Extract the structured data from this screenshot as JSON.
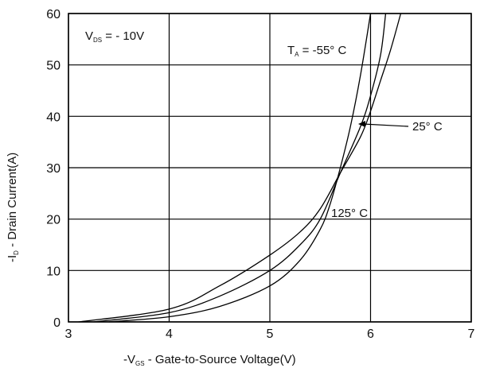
{
  "chart_data": {
    "type": "line",
    "xlabel": {
      "prefix": "-V",
      "sub": "GS",
      "rest": " - Gate-to-Source Voltage(V)"
    },
    "ylabel": {
      "prefix": "-I",
      "sub": "D",
      "rest": " - Drain Current(A)"
    },
    "xlim": [
      3,
      7
    ],
    "ylim": [
      0,
      60
    ],
    "x_ticks": [
      3,
      4,
      5,
      6,
      7
    ],
    "y_ticks": [
      0,
      10,
      20,
      30,
      40,
      50,
      60
    ],
    "grid": true,
    "annotations": {
      "vds": {
        "prefix": "V",
        "sub": "DS",
        "rest": " = - 10V"
      },
      "ta": {
        "prefix": "T",
        "sub": "A",
        "rest": "  = -55° C"
      },
      "t25": "25° C",
      "t125": "125° C"
    },
    "series": [
      {
        "name": "-55° C",
        "x": [
          3.4,
          4.0,
          4.5,
          5.0,
          5.3,
          5.5,
          5.6,
          5.7,
          5.8,
          5.9,
          6.0
        ],
        "y": [
          0,
          1.0,
          3.0,
          7.0,
          12.0,
          18.0,
          23.0,
          30.0,
          38.0,
          48.0,
          60.0
        ]
      },
      {
        "name": "25° C",
        "x": [
          3.25,
          4.0,
          4.5,
          5.0,
          5.3,
          5.5,
          5.7,
          5.9,
          6.0,
          6.1,
          6.15
        ],
        "y": [
          0,
          1.8,
          5.0,
          10.0,
          15.0,
          20.0,
          29.0,
          38.0,
          44.0,
          52.0,
          60.0
        ]
      },
      {
        "name": "125° C",
        "x": [
          3.1,
          4.0,
          4.5,
          5.0,
          5.3,
          5.5,
          5.7,
          5.9,
          6.0,
          6.1,
          6.2,
          6.3
        ],
        "y": [
          0,
          2.5,
          7.0,
          13.0,
          17.5,
          22.0,
          29.0,
          36.0,
          41.0,
          47.0,
          53.0,
          60.0
        ]
      }
    ]
  }
}
